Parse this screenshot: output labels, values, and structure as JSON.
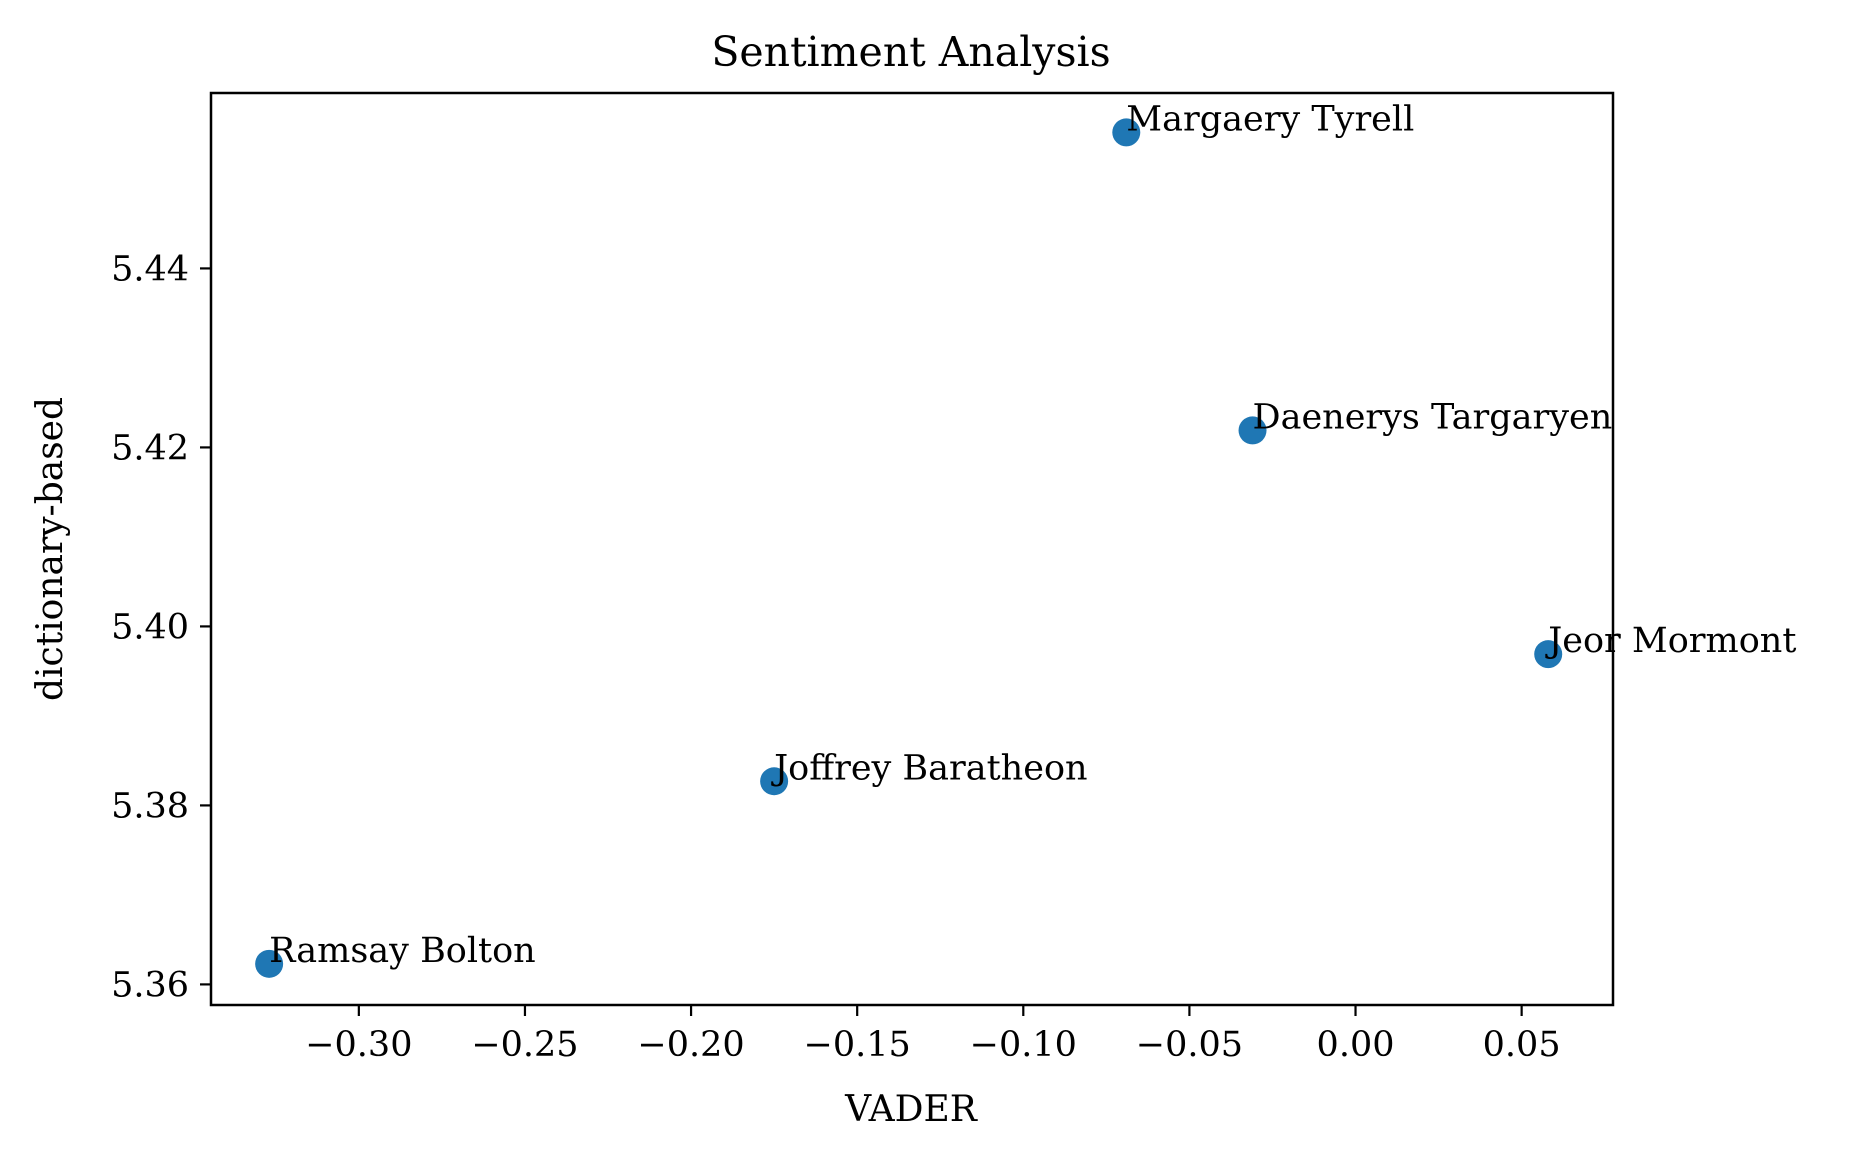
{
  "chart_data": {
    "type": "scatter",
    "title": "Sentiment Analysis",
    "xlabel": "VADER",
    "ylabel": "dictionary-based",
    "xlim": [
      -0.3445,
      0.0775
    ],
    "ylim": [
      5.3577,
      5.4596
    ],
    "xticks": [
      -0.3,
      -0.25,
      -0.2,
      -0.15,
      -0.1,
      -0.05,
      0.0,
      0.05
    ],
    "xtick_labels": [
      "−0.30",
      "−0.25",
      "−0.20",
      "−0.15",
      "−0.10",
      "−0.05",
      "0.00",
      "0.05"
    ],
    "yticks": [
      5.36,
      5.38,
      5.4,
      5.42,
      5.44
    ],
    "ytick_labels": [
      "5.36",
      "5.38",
      "5.40",
      "5.42",
      "5.44"
    ],
    "grid": false,
    "marker_color": "#1f77b4",
    "points": [
      {
        "label": "Margaery Tyrell",
        "x": -0.069,
        "y": 5.4552
      },
      {
        "label": "Daenerys Targaryen",
        "x": -0.031,
        "y": 5.4219
      },
      {
        "label": "Jeor Mormont",
        "x": 0.058,
        "y": 5.3969
      },
      {
        "label": "Joffrey Baratheon",
        "x": -0.175,
        "y": 5.3827
      },
      {
        "label": "Ramsay Bolton",
        "x": -0.327,
        "y": 5.3623
      }
    ]
  }
}
